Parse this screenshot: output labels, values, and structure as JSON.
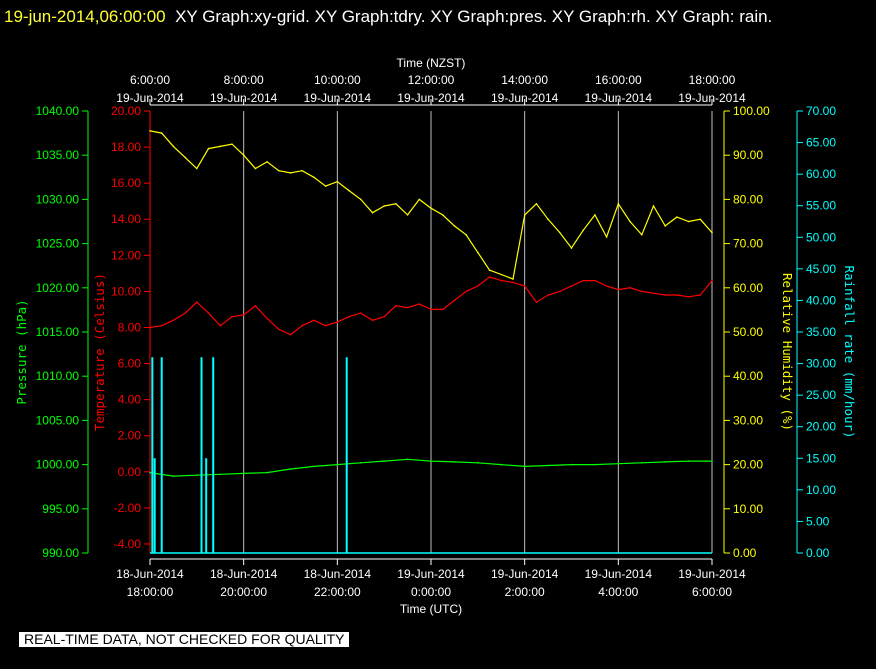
{
  "header": {
    "timestamp": "19-jun-2014,06:00:00",
    "titles": "XY Graph:xy-grid.  XY Graph:tdry.  XY Graph:pres.  XY Graph:rh.  XY Graph: rain."
  },
  "disclaimer": "REAL-TIME DATA, NOT CHECKED FOR QUALITY",
  "colors": {
    "pressure": "#00ff00",
    "temperature": "#ff0000",
    "humidity": "#ffff00",
    "rain": "#00ffff",
    "grid": "#c0c0c0"
  },
  "chart_data": {
    "type": "line",
    "top_axis": {
      "label": "Time (NZST)",
      "ticks": [
        {
          "time": "6:00:00",
          "date": "19-Jun-2014"
        },
        {
          "time": "8:00:00",
          "date": "19-Jun-2014"
        },
        {
          "time": "10:00:00",
          "date": "19-Jun-2014"
        },
        {
          "time": "12:00:00",
          "date": "19-Jun-2014"
        },
        {
          "time": "14:00:00",
          "date": "19-Jun-2014"
        },
        {
          "time": "16:00:00",
          "date": "19-Jun-2014"
        },
        {
          "time": "18:00:00",
          "date": "19-Jun-2014"
        }
      ]
    },
    "bottom_axis": {
      "label": "Time (UTC)",
      "ticks": [
        {
          "date": "18-Jun-2014",
          "time": "18:00:00"
        },
        {
          "date": "18-Jun-2014",
          "time": "20:00:00"
        },
        {
          "date": "18-Jun-2014",
          "time": "22:00:00"
        },
        {
          "date": "19-Jun-2014",
          "time": "0:00:00"
        },
        {
          "date": "19-Jun-2014",
          "time": "2:00:00"
        },
        {
          "date": "19-Jun-2014",
          "time": "4:00:00"
        },
        {
          "date": "19-Jun-2014",
          "time": "6:00:00"
        }
      ]
    },
    "x_range_hours": [
      0,
      12
    ],
    "y_axes": {
      "pressure": {
        "label": "Pressure (hPa)",
        "ticks": [
          "1040.00",
          "1035.00",
          "1030.00",
          "1025.00",
          "1020.00",
          "1015.00",
          "1010.00",
          "1005.00",
          "1000.00",
          "995.00",
          "990.00"
        ],
        "range": [
          990,
          1040
        ]
      },
      "temperature": {
        "label": "Temperature (Celsius)",
        "ticks": [
          "20.00",
          "18.00",
          "16.00",
          "14.00",
          "12.00",
          "10.00",
          "8.00",
          "6.00",
          "4.00",
          "2.00",
          "0.00",
          "-2.00",
          "-4.00"
        ],
        "range": [
          -4.5,
          20
        ]
      },
      "humidity": {
        "label": "Relative Humidity (%)",
        "ticks": [
          "100.00",
          "90.00",
          "80.00",
          "70.00",
          "60.00",
          "50.00",
          "40.00",
          "30.00",
          "20.00",
          "10.00",
          "0.00"
        ],
        "range": [
          0,
          100
        ]
      },
      "rain": {
        "label": "Rainfall rate (mm/hour)",
        "ticks": [
          "70.00",
          "65.00",
          "60.00",
          "55.00",
          "50.00",
          "45.00",
          "40.00",
          "35.00",
          "30.00",
          "25.00",
          "20.00",
          "15.00",
          "10.00",
          "5.00",
          "0.00"
        ],
        "range": [
          0,
          70
        ]
      }
    },
    "series": [
      {
        "name": "Pressure (hPa)",
        "key": "pressure",
        "x": [
          0,
          0.5,
          1,
          1.5,
          2,
          2.5,
          3,
          3.5,
          4,
          4.5,
          5,
          5.5,
          6,
          6.5,
          7,
          7.5,
          8,
          8.5,
          9,
          9.5,
          10,
          10.5,
          11,
          11.5,
          12
        ],
        "y": [
          999.1,
          998.7,
          998.8,
          998.9,
          999.0,
          999.1,
          999.5,
          999.8,
          1000.0,
          1000.2,
          1000.4,
          1000.6,
          1000.4,
          1000.3,
          1000.2,
          1000.0,
          999.8,
          999.9,
          1000.0,
          1000.0,
          1000.1,
          1000.2,
          1000.3,
          1000.4,
          1000.4
        ]
      },
      {
        "name": "Temperature (Celsius)",
        "key": "temperature",
        "x": [
          0,
          0.25,
          0.5,
          0.75,
          1,
          1.25,
          1.5,
          1.75,
          2,
          2.25,
          2.5,
          2.75,
          3,
          3.25,
          3.5,
          3.75,
          4,
          4.25,
          4.5,
          4.75,
          5,
          5.25,
          5.5,
          5.75,
          6,
          6.25,
          6.5,
          6.75,
          7,
          7.25,
          7.5,
          7.75,
          8,
          8.25,
          8.5,
          8.75,
          9,
          9.25,
          9.5,
          9.75,
          10,
          10.25,
          10.5,
          10.75,
          11,
          11.25,
          11.5,
          11.75,
          12
        ],
        "y": [
          8.0,
          8.1,
          8.4,
          8.8,
          9.4,
          8.8,
          8.1,
          8.6,
          8.7,
          9.2,
          8.5,
          7.9,
          7.6,
          8.1,
          8.4,
          8.1,
          8.3,
          8.6,
          8.8,
          8.4,
          8.6,
          9.2,
          9.1,
          9.3,
          9.0,
          9.0,
          9.5,
          10.0,
          10.3,
          10.8,
          10.6,
          10.5,
          10.3,
          9.4,
          9.8,
          10.0,
          10.3,
          10.6,
          10.6,
          10.3,
          10.1,
          10.2,
          10.0,
          9.9,
          9.8,
          9.8,
          9.7,
          9.8,
          10.6
        ]
      },
      {
        "name": "Relative Humidity (%)",
        "key": "humidity",
        "x": [
          0,
          0.25,
          0.5,
          0.75,
          1,
          1.25,
          1.5,
          1.75,
          2,
          2.25,
          2.5,
          2.75,
          3,
          3.25,
          3.5,
          3.75,
          4,
          4.25,
          4.5,
          4.75,
          5,
          5.25,
          5.5,
          5.75,
          6,
          6.25,
          6.5,
          6.75,
          7,
          7.25,
          7.5,
          7.75,
          8,
          8.25,
          8.5,
          8.75,
          9,
          9.25,
          9.5,
          9.75,
          10,
          10.25,
          10.5,
          10.75,
          11,
          11.25,
          11.5,
          11.75,
          12
        ],
        "y": [
          95.5,
          95.0,
          92.0,
          89.5,
          87.0,
          91.5,
          92.0,
          92.5,
          90.0,
          87.0,
          88.5,
          86.5,
          86.0,
          86.5,
          85.0,
          83.0,
          84.0,
          82.0,
          80.0,
          77.0,
          78.5,
          79.0,
          76.5,
          80.0,
          78.0,
          76.5,
          74.0,
          72.0,
          68.0,
          64.0,
          63.0,
          62.0,
          76.5,
          79.0,
          75.5,
          72.5,
          69.0,
          73.0,
          76.5,
          71.5,
          79.0,
          75.0,
          72.0,
          78.5,
          74.0,
          76.0,
          75.0,
          75.5,
          72.5
        ]
      },
      {
        "name": "Rainfall rate (mm/hour)",
        "key": "rain",
        "x": [
          0.05,
          0.1,
          0.25,
          1.1,
          1.2,
          1.35,
          4.2
        ],
        "y": [
          31.0,
          15.0,
          31.0,
          31.0,
          15.0,
          31.0,
          31.0
        ]
      }
    ]
  }
}
